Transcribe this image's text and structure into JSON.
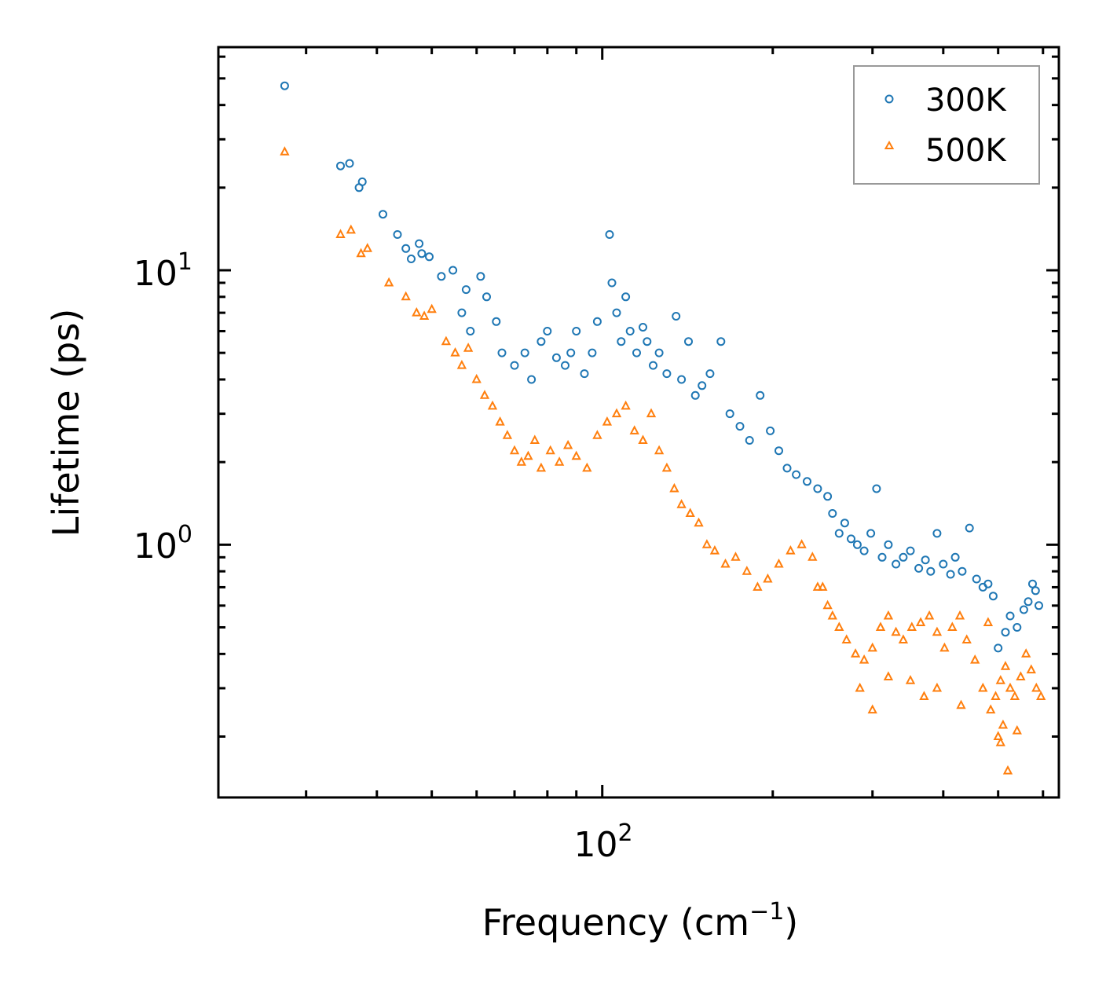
{
  "chart_data": {
    "type": "scatter",
    "title": "",
    "xlabel": "Frequency (cm",
    "xlabel_superscript": "−1",
    "xlabel_suffix": ")",
    "ylabel": "Lifetime (ps)",
    "xscale": "log",
    "yscale": "log",
    "xlim": [
      21,
      640
    ],
    "ylim": [
      0.12,
      65
    ],
    "x_tick_labels": [
      {
        "base": "10",
        "exp": "2",
        "value": 100
      }
    ],
    "y_tick_labels": [
      {
        "base": "10",
        "exp": "0",
        "value": 1
      },
      {
        "base": "10",
        "exp": "1",
        "value": 10
      }
    ],
    "legend_position": "top-right",
    "colors": {
      "300K": "#1f77b4",
      "500K": "#ff7f0e"
    },
    "series": [
      {
        "name": "300K",
        "marker": "circle",
        "points": [
          [
            27.5,
            47
          ],
          [
            34.5,
            24
          ],
          [
            35.8,
            24.5
          ],
          [
            37.2,
            20
          ],
          [
            37.7,
            21
          ],
          [
            41,
            16
          ],
          [
            43.5,
            13.5
          ],
          [
            45,
            12
          ],
          [
            46,
            11
          ],
          [
            47.5,
            12.5
          ],
          [
            48,
            11.5
          ],
          [
            49.5,
            11.2
          ],
          [
            52,
            9.5
          ],
          [
            54.5,
            10
          ],
          [
            56.5,
            7
          ],
          [
            57.5,
            8.5
          ],
          [
            58.5,
            6
          ],
          [
            61,
            9.5
          ],
          [
            62.5,
            8
          ],
          [
            65,
            6.5
          ],
          [
            66.5,
            5
          ],
          [
            70,
            4.5
          ],
          [
            73,
            5
          ],
          [
            75,
            4
          ],
          [
            78,
            5.5
          ],
          [
            80,
            6
          ],
          [
            83,
            4.8
          ],
          [
            86,
            4.5
          ],
          [
            88,
            5
          ],
          [
            90,
            6
          ],
          [
            93,
            4.2
          ],
          [
            96,
            5
          ],
          [
            98,
            6.5
          ],
          [
            103,
            13.5
          ],
          [
            104,
            9
          ],
          [
            106,
            7
          ],
          [
            108,
            5.5
          ],
          [
            110,
            8
          ],
          [
            112,
            6
          ],
          [
            115,
            5
          ],
          [
            118,
            6.2
          ],
          [
            120,
            5.5
          ],
          [
            123,
            4.5
          ],
          [
            126,
            5
          ],
          [
            130,
            4.2
          ],
          [
            135,
            6.8
          ],
          [
            138,
            4
          ],
          [
            142,
            5.5
          ],
          [
            146,
            3.5
          ],
          [
            150,
            3.8
          ],
          [
            155,
            4.2
          ],
          [
            162,
            5.5
          ],
          [
            168,
            3
          ],
          [
            175,
            2.7
          ],
          [
            182,
            2.4
          ],
          [
            190,
            3.5
          ],
          [
            198,
            2.6
          ],
          [
            205,
            2.2
          ],
          [
            212,
            1.9
          ],
          [
            220,
            1.8
          ],
          [
            230,
            1.7
          ],
          [
            240,
            1.6
          ],
          [
            250,
            1.5
          ],
          [
            255,
            1.3
          ],
          [
            262,
            1.1
          ],
          [
            268,
            1.2
          ],
          [
            275,
            1.05
          ],
          [
            282,
            1.0
          ],
          [
            290,
            0.95
          ],
          [
            298,
            1.1
          ],
          [
            305,
            1.6
          ],
          [
            312,
            0.9
          ],
          [
            320,
            1.0
          ],
          [
            330,
            0.85
          ],
          [
            340,
            0.9
          ],
          [
            350,
            0.95
          ],
          [
            362,
            0.82
          ],
          [
            372,
            0.88
          ],
          [
            380,
            0.8
          ],
          [
            390,
            1.1
          ],
          [
            400,
            0.85
          ],
          [
            412,
            0.78
          ],
          [
            420,
            0.9
          ],
          [
            432,
            0.8
          ],
          [
            445,
            1.15
          ],
          [
            458,
            0.75
          ],
          [
            470,
            0.7
          ],
          [
            480,
            0.72
          ],
          [
            490,
            0.65
          ],
          [
            500,
            0.42
          ],
          [
            515,
            0.48
          ],
          [
            525,
            0.55
          ],
          [
            540,
            0.5
          ],
          [
            555,
            0.58
          ],
          [
            565,
            0.62
          ],
          [
            575,
            0.72
          ],
          [
            582,
            0.68
          ],
          [
            590,
            0.6
          ]
        ]
      },
      {
        "name": "500K",
        "marker": "triangle",
        "points": [
          [
            27.5,
            27
          ],
          [
            34.5,
            13.5
          ],
          [
            36,
            14
          ],
          [
            37.5,
            11.5
          ],
          [
            38.5,
            12
          ],
          [
            42,
            9
          ],
          [
            45,
            8
          ],
          [
            47,
            7
          ],
          [
            48.5,
            6.8
          ],
          [
            50,
            7.2
          ],
          [
            53,
            5.5
          ],
          [
            55,
            5
          ],
          [
            56.5,
            4.5
          ],
          [
            58,
            5.2
          ],
          [
            60,
            4
          ],
          [
            62,
            3.5
          ],
          [
            64,
            3.2
          ],
          [
            66,
            2.8
          ],
          [
            68,
            2.5
          ],
          [
            70,
            2.2
          ],
          [
            72,
            2.0
          ],
          [
            74,
            2.1
          ],
          [
            76,
            2.4
          ],
          [
            78,
            1.9
          ],
          [
            81,
            2.2
          ],
          [
            84,
            2.0
          ],
          [
            87,
            2.3
          ],
          [
            90,
            2.1
          ],
          [
            94,
            1.9
          ],
          [
            98,
            2.5
          ],
          [
            102,
            2.8
          ],
          [
            106,
            3.0
          ],
          [
            110,
            3.2
          ],
          [
            114,
            2.6
          ],
          [
            118,
            2.4
          ],
          [
            122,
            3.0
          ],
          [
            126,
            2.2
          ],
          [
            130,
            1.9
          ],
          [
            134,
            1.6
          ],
          [
            138,
            1.4
          ],
          [
            143,
            1.3
          ],
          [
            148,
            1.2
          ],
          [
            153,
            1.0
          ],
          [
            158,
            0.95
          ],
          [
            165,
            0.85
          ],
          [
            172,
            0.9
          ],
          [
            180,
            0.8
          ],
          [
            188,
            0.7
          ],
          [
            196,
            0.75
          ],
          [
            205,
            0.85
          ],
          [
            215,
            0.95
          ],
          [
            225,
            1.0
          ],
          [
            235,
            0.9
          ],
          [
            245,
            0.7
          ],
          [
            255,
            0.55
          ],
          [
            262,
            0.5
          ],
          [
            270,
            0.45
          ],
          [
            280,
            0.4
          ],
          [
            290,
            0.38
          ],
          [
            300,
            0.42
          ],
          [
            310,
            0.5
          ],
          [
            320,
            0.55
          ],
          [
            330,
            0.48
          ],
          [
            340,
            0.45
          ],
          [
            352,
            0.5
          ],
          [
            365,
            0.52
          ],
          [
            378,
            0.55
          ],
          [
            390,
            0.48
          ],
          [
            402,
            0.42
          ],
          [
            415,
            0.5
          ],
          [
            428,
            0.55
          ],
          [
            440,
            0.45
          ],
          [
            455,
            0.38
          ],
          [
            470,
            0.3
          ],
          [
            485,
            0.25
          ],
          [
            495,
            0.28
          ],
          [
            505,
            0.32
          ],
          [
            515,
            0.36
          ],
          [
            525,
            0.3
          ],
          [
            535,
            0.28
          ],
          [
            548,
            0.33
          ],
          [
            560,
            0.4
          ],
          [
            572,
            0.35
          ],
          [
            584,
            0.3
          ],
          [
            595,
            0.28
          ],
          [
            240,
            0.7
          ],
          [
            250,
            0.6
          ],
          [
            285,
            0.3
          ],
          [
            300,
            0.25
          ],
          [
            320,
            0.33
          ],
          [
            350,
            0.32
          ],
          [
            370,
            0.28
          ],
          [
            390,
            0.3
          ],
          [
            430,
            0.26
          ],
          [
            500,
            0.2
          ],
          [
            510,
            0.22
          ],
          [
            540,
            0.21
          ],
          [
            480,
            0.52
          ],
          [
            505,
            0.19
          ],
          [
            520,
            0.15
          ]
        ]
      }
    ]
  }
}
